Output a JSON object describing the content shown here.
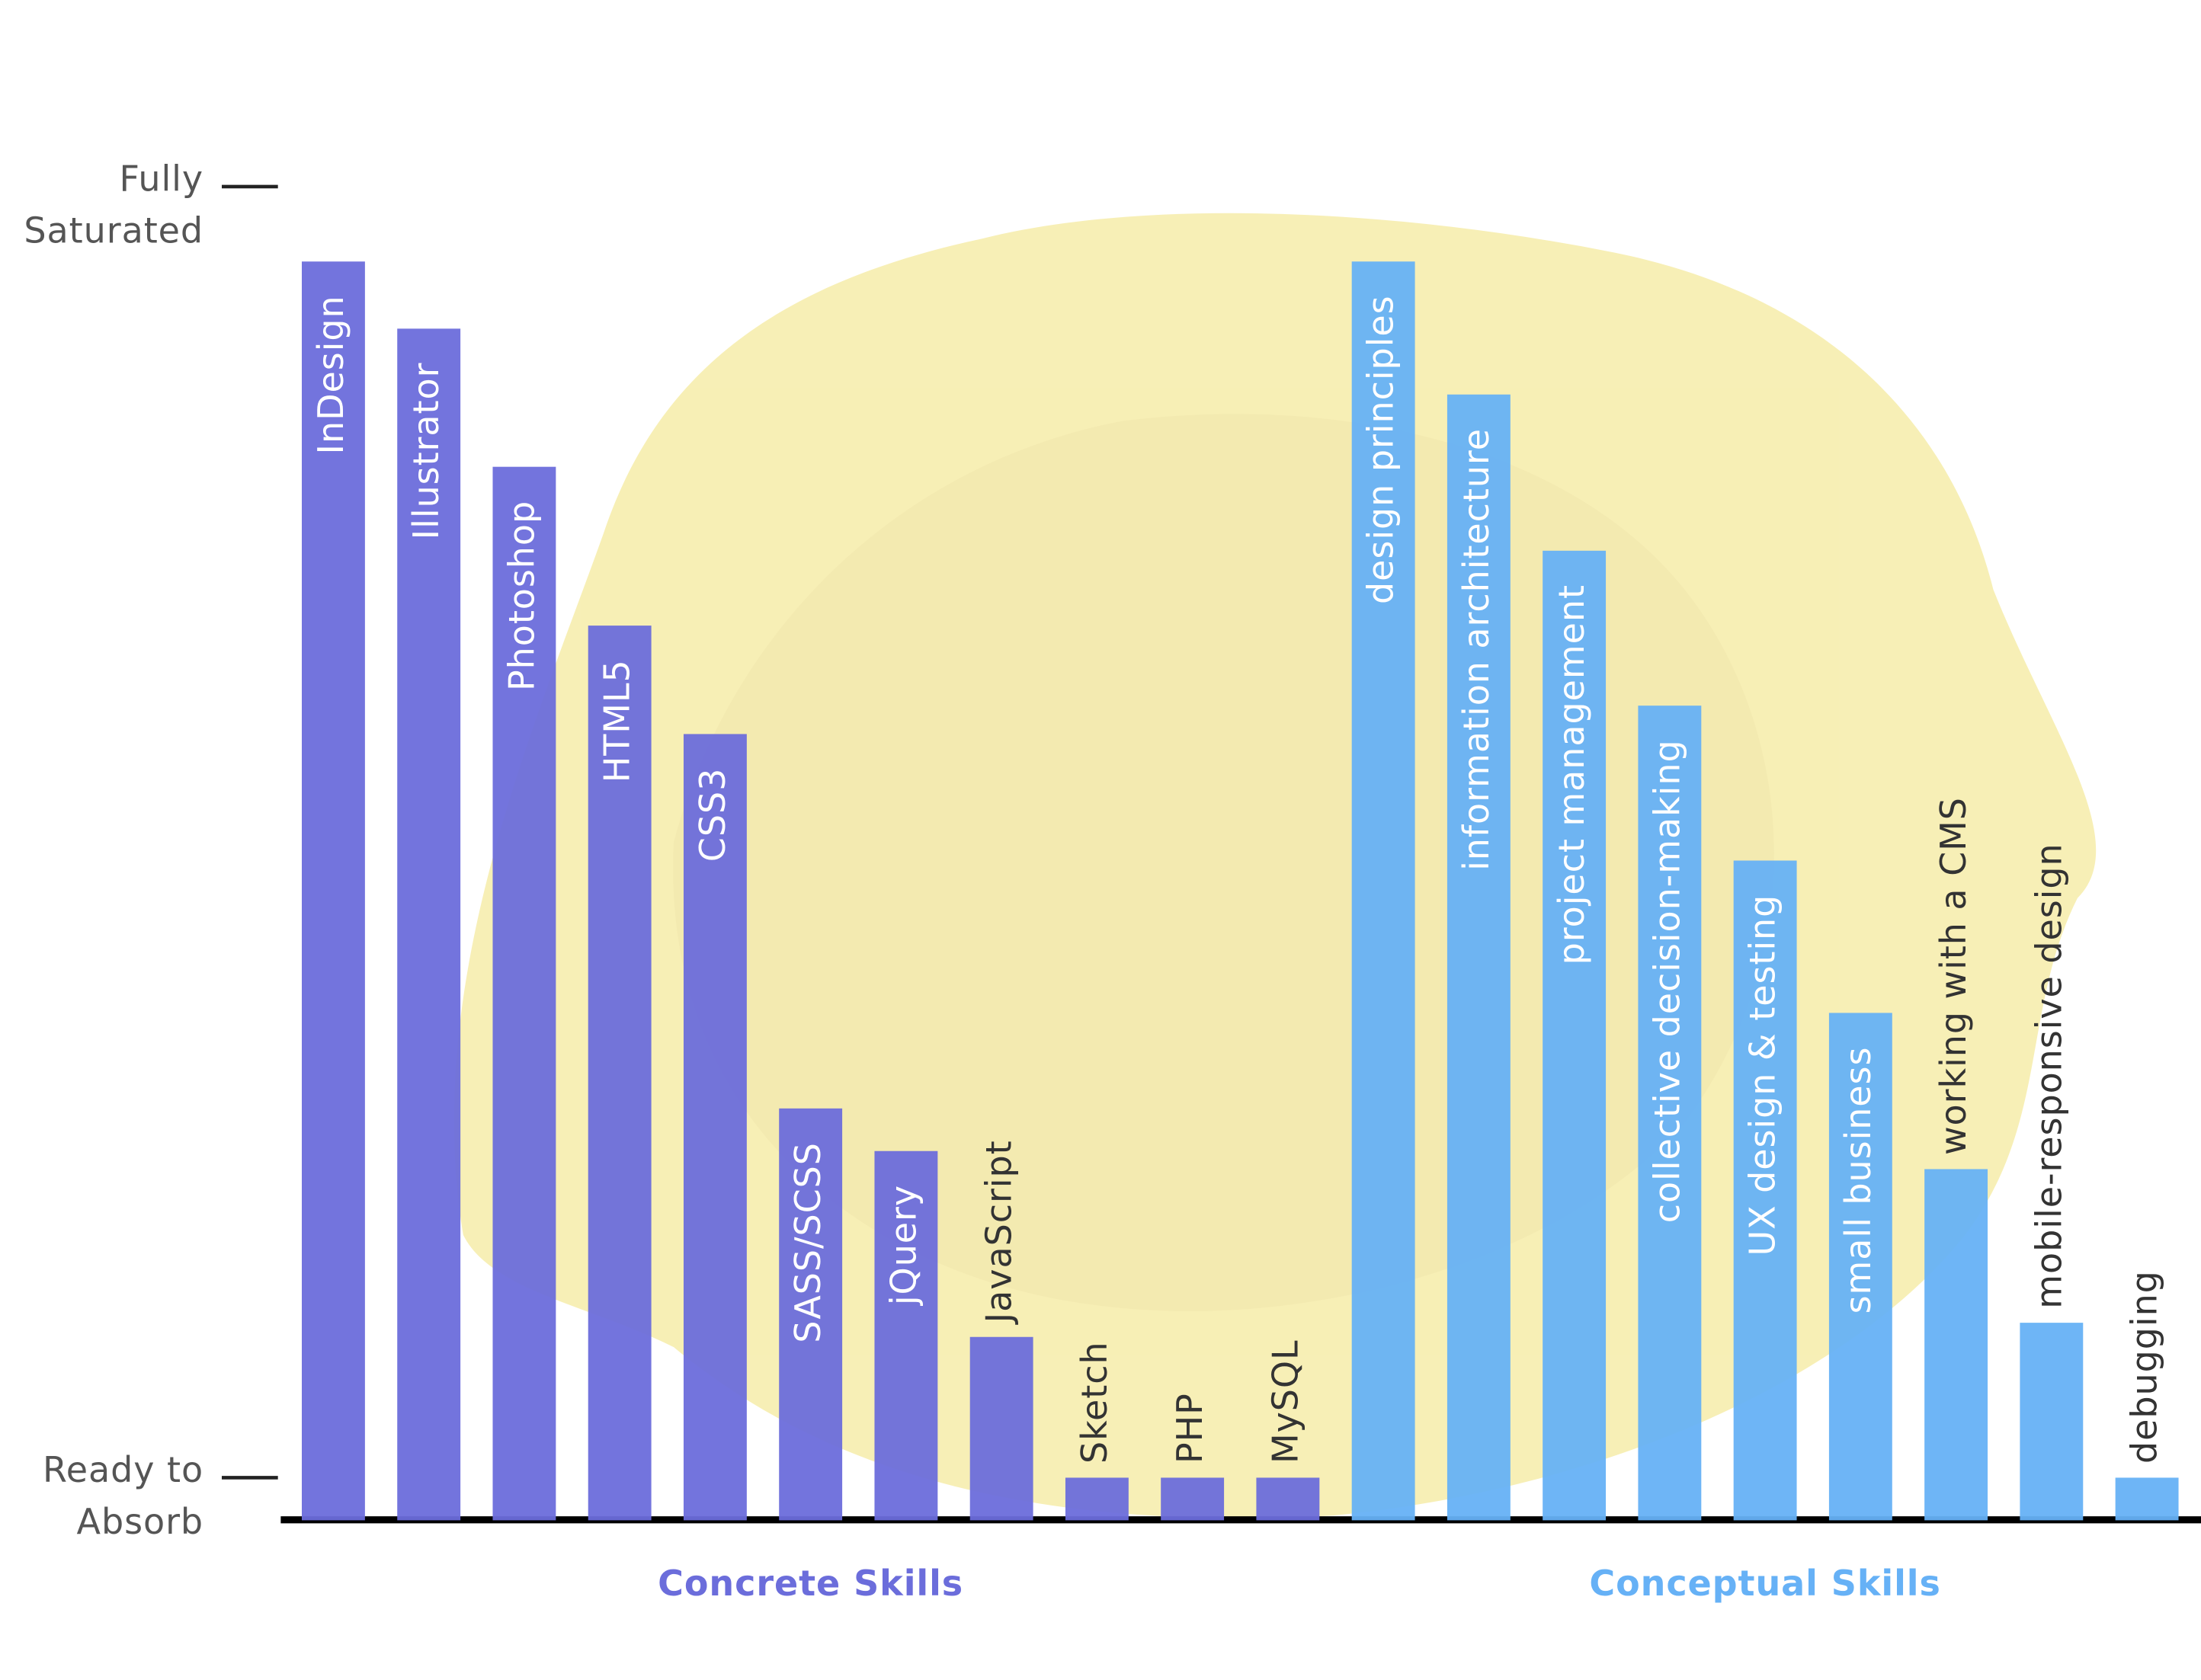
{
  "chart_data": {
    "type": "bar",
    "categories": [
      "InDesign",
      "Illustrator",
      "Photoshop",
      "HTML5",
      "CSS3",
      "SASS/SCSS",
      "jQuery",
      "JavaScript",
      "Sketch",
      "PHP",
      "MySQL",
      "design principles",
      "information architecture",
      "project management",
      "collective decision-making",
      "UX design & testing",
      "small business",
      "working with a CMS",
      "mobile-responsive design",
      "debugging"
    ],
    "series": [
      {
        "name": "Concrete Skills",
        "color": "#6b6ddb",
        "values": [
          94.2,
          89.0,
          78.3,
          66.0,
          57.6,
          28.6,
          25.3,
          10.9,
          0,
          0,
          0,
          null,
          null,
          null,
          null,
          null,
          null,
          null,
          null,
          null
        ]
      },
      {
        "name": "Conceptual Skills",
        "color": "#66b1f6",
        "values": [
          null,
          null,
          null,
          null,
          null,
          null,
          null,
          null,
          null,
          null,
          null,
          94.2,
          83.9,
          71.8,
          59.8,
          47.8,
          36.0,
          23.9,
          12.0,
          0
        ]
      }
    ],
    "ylim": [
      -3.3,
      100
    ],
    "yticks": [
      {
        "value": 0,
        "label": "Ready to Absorb"
      },
      {
        "value": 100,
        "label": "Fully Saturated"
      }
    ]
  }
}
